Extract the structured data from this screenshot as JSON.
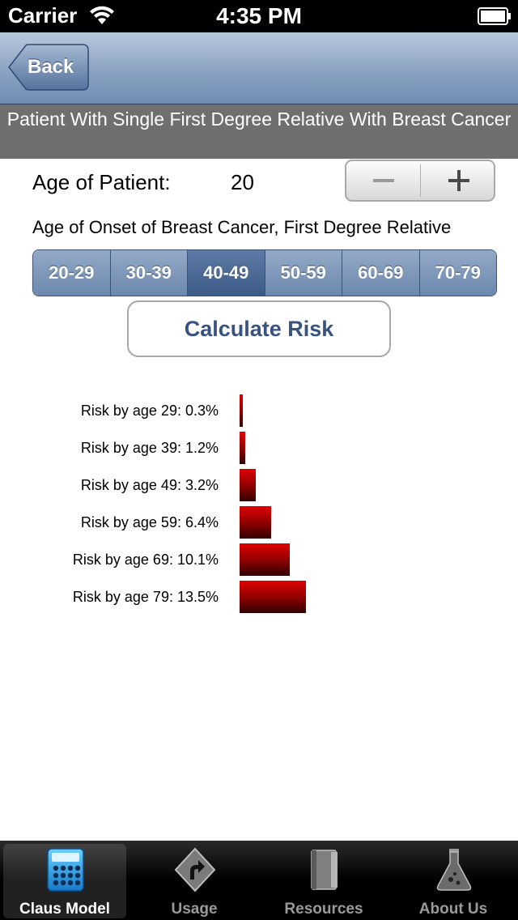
{
  "status_bar": {
    "carrier": "Carrier",
    "time": "4:35 PM"
  },
  "nav": {
    "back_label": "Back"
  },
  "banner": {
    "title": "Patient With Single First Degree Relative With Breast Cancer"
  },
  "age": {
    "label": "Age of Patient:",
    "value": "20"
  },
  "onset": {
    "label": "Age of Onset of Breast Cancer, First Degree Relative",
    "options": [
      "20-29",
      "30-39",
      "40-49",
      "50-59",
      "60-69",
      "70-79"
    ],
    "selected": "40-49"
  },
  "calculate_label": "Calculate Risk",
  "results": [
    {
      "label": "Risk by age 29: 0.3%",
      "value": 0.3
    },
    {
      "label": "Risk by age 39: 1.2%",
      "value": 1.2
    },
    {
      "label": "Risk by age 49: 3.2%",
      "value": 3.2
    },
    {
      "label": "Risk by age 59: 6.4%",
      "value": 6.4
    },
    {
      "label": "Risk by age 69: 10.1%",
      "value": 10.1
    },
    {
      "label": "Risk by age 79: 13.5%",
      "value": 13.5
    }
  ],
  "tabs": [
    {
      "label": "Claus Model",
      "icon": "calculator-icon",
      "selected": true
    },
    {
      "label": "Usage",
      "icon": "turn-sign-icon",
      "selected": false
    },
    {
      "label": "Resources",
      "icon": "book-icon",
      "selected": false
    },
    {
      "label": "About Us",
      "icon": "flask-icon",
      "selected": false
    }
  ]
}
